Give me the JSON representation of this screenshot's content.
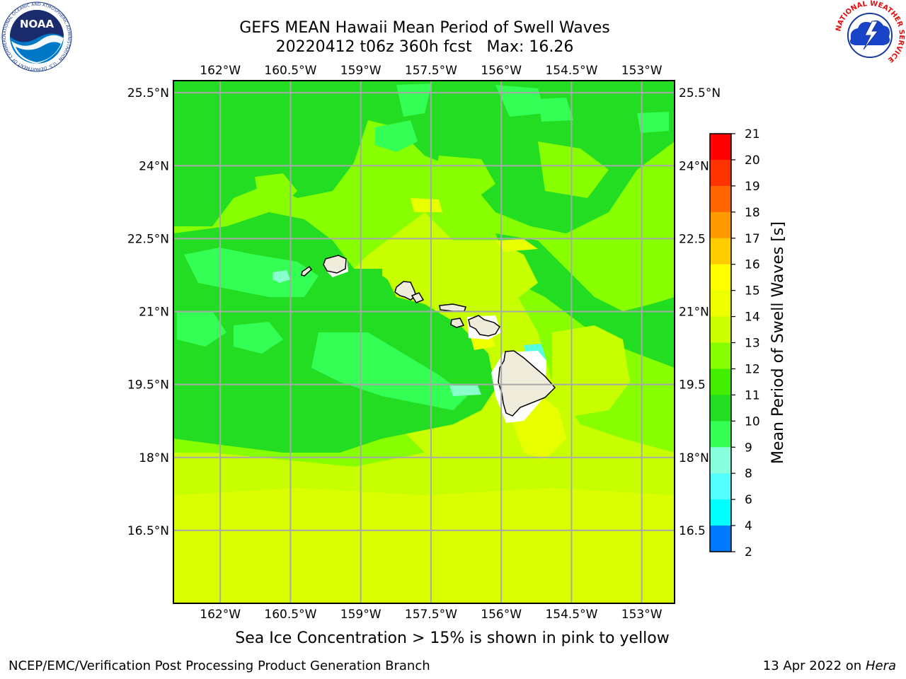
{
  "title": {
    "line1": "GEFS MEAN Hawaii Mean Period of Swell Waves",
    "line2": "20220412 t06z 360h fcst   Max: 16.26"
  },
  "map": {
    "lon_ticks": [
      "162°W",
      "160.5°W",
      "159°W",
      "157.5°W",
      "156°W",
      "154.5°W",
      "153°W"
    ],
    "lon_values": [
      -162,
      -160.5,
      -159,
      -157.5,
      -156,
      -154.5,
      -153
    ],
    "lat_ticks": [
      "25.5°N",
      "24°N",
      "22.5°N",
      "21°N",
      "19.5°N",
      "18°N",
      "16.5°N"
    ],
    "lat_ticks_right": [
      "25.5°N",
      "24°N",
      "22.5",
      "21°N",
      "19.5",
      "18°N",
      "16.5"
    ],
    "lat_values": [
      25.5,
      24,
      22.5,
      21,
      19.5,
      18,
      16.5
    ],
    "lon_range": [
      -163,
      -152.3
    ],
    "lat_range": [
      15,
      25.75
    ],
    "grid": true,
    "colors": {
      "background_field": "#c8ff00",
      "zone_11_12": "#22dd22",
      "zone_12_13": "#88ff00",
      "zone_10_11": "#33ff55",
      "zone_14_15": "#e8ff00",
      "zone_9_10": "#88ffcc",
      "land": "#f0ecdc"
    }
  },
  "colorbar": {
    "label": "Mean Period of Swell Waves [s]",
    "ticks": [
      "21",
      "20",
      "19",
      "18",
      "17",
      "16",
      "15",
      "14",
      "13",
      "12",
      "11",
      "10",
      "9",
      "8",
      "6",
      "4",
      "2"
    ],
    "colors": [
      "#ff0000",
      "#ff3300",
      "#ff6600",
      "#ff9900",
      "#ffcc00",
      "#ffff00",
      "#eeff00",
      "#ccff00",
      "#88ff00",
      "#44ee00",
      "#22dd22",
      "#33ff55",
      "#88ffdd",
      "#55ffff",
      "#00ffff",
      "#0077ff",
      "#0000ff"
    ]
  },
  "bottom_note": "Sea Ice Concentration > 15% is shown in pink to yellow",
  "footer": {
    "left": "NCEP/EMC/Verification Post Processing Product Generation Branch",
    "right_prefix": "13 Apr 2022 on ",
    "right_machine": "Hera"
  },
  "logos": {
    "noaa": "NOAA",
    "noaa_ring": "NATIONAL OCEANIC AND ATMOSPHERIC ADMINISTRATION · U.S. DEPARTMENT OF COMMERCE",
    "nws_ring": "NATIONAL WEATHER SERVICE"
  }
}
